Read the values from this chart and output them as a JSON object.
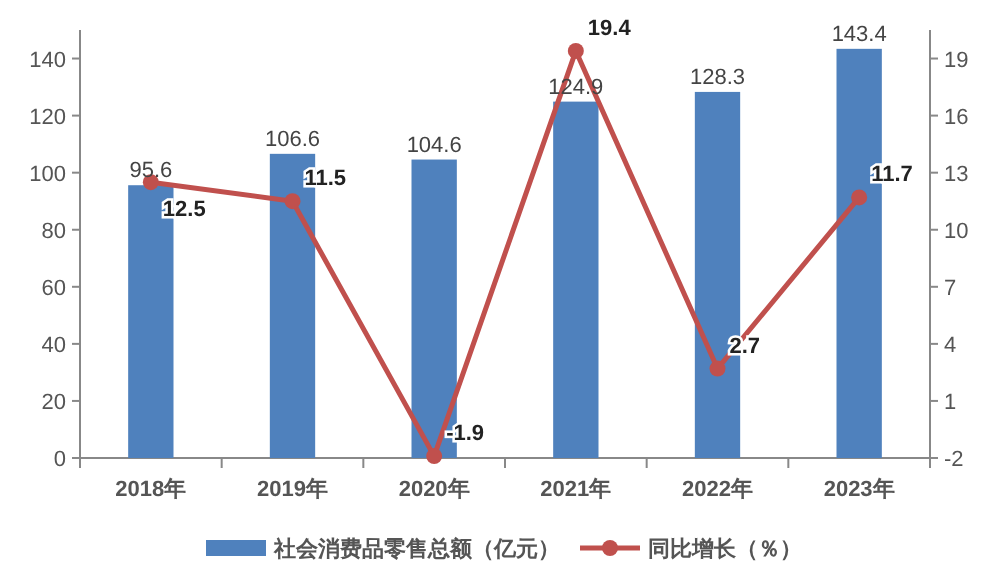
{
  "chart_data": {
    "type": "bar",
    "categories": [
      "2018年",
      "2019年",
      "2020年",
      "2021年",
      "2022年",
      "2023年"
    ],
    "series": [
      {
        "name": "社会消费品零售总额（亿元）",
        "color": "#4f81bd",
        "values": [
          95.6,
          106.6,
          104.6,
          124.9,
          128.3,
          143.4
        ]
      },
      {
        "name": "同比增长（％）",
        "type": "line",
        "axis": "y2",
        "color": "#c0504d",
        "values": [
          12.5,
          11.5,
          -1.9,
          19.4,
          2.7,
          11.7
        ]
      }
    ],
    "ylim": [
      0,
      150
    ],
    "yticks": [
      0,
      20,
      40,
      60,
      80,
      100,
      120,
      140
    ],
    "y2lim": [
      -2,
      20.5
    ],
    "y2ticks": [
      -2,
      1,
      4,
      7,
      10,
      13,
      16,
      19
    ],
    "data_labels": true,
    "marker": "circle",
    "legend": "bottom",
    "grid": false
  }
}
